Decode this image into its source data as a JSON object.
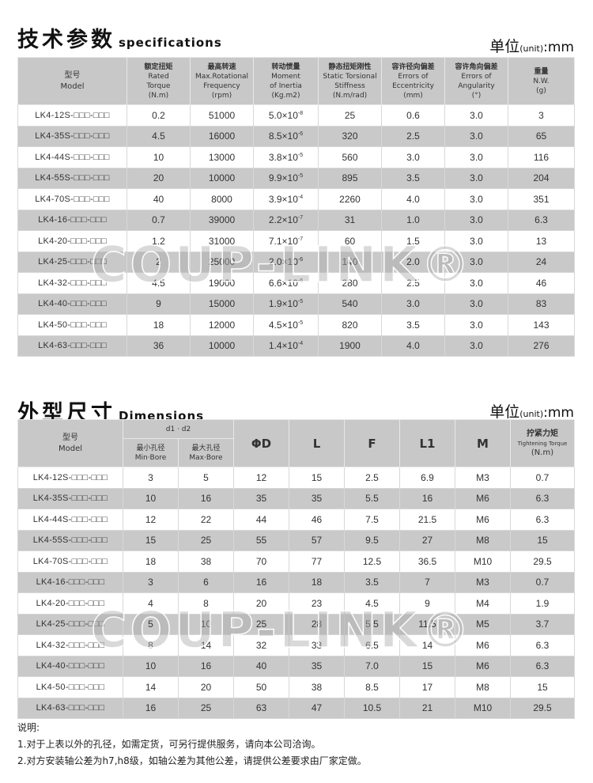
{
  "spec": {
    "title_cn": "技术参数",
    "title_en": "specifications",
    "unit_cn": "单位",
    "unit_sm": "(unit)",
    "unit_mm": ":mm",
    "headers": [
      [
        "型号",
        "Model"
      ],
      [
        "额定扭矩",
        "Rated",
        "Torque",
        "(N.m)"
      ],
      [
        "最高转速",
        "Max.Rotational",
        "Frequency",
        "(rpm)"
      ],
      [
        "转动惯量",
        "Moment",
        "of Inertia",
        "(Kg.m2)"
      ],
      [
        "静态扭矩刚性",
        "Static Torsional",
        "Stiffness",
        "(N.m/rad)"
      ],
      [
        "容许径向偏差",
        "Errors of",
        "Eccentricity",
        "(mm)"
      ],
      [
        "容许角向偏差",
        "Errors of",
        "Angularity",
        "(°)"
      ],
      [
        "重量",
        "N.W.",
        "(g)"
      ]
    ],
    "rows": [
      [
        "LK4-12S-□□□-□□□",
        "0.2",
        "51000",
        "5.0×10",
        "-8",
        "25",
        "0.6",
        "3.0",
        "3"
      ],
      [
        "LK4-35S-□□□-□□□",
        "4.5",
        "16000",
        "8.5×10",
        "-6",
        "320",
        "2.5",
        "3.0",
        "65"
      ],
      [
        "LK4-44S-□□□-□□□",
        "10",
        "13000",
        "3.8×10",
        "-5",
        "560",
        "3.0",
        "3.0",
        "116"
      ],
      [
        "LK4-55S-□□□-□□□",
        "20",
        "10000",
        "9.9×10",
        "-5",
        "895",
        "3.5",
        "3.0",
        "204"
      ],
      [
        "LK4-70S-□□□-□□□",
        "40",
        "8000",
        "3.9×10",
        "-4",
        "2260",
        "4.0",
        "3.0",
        "351"
      ],
      [
        "LK4-16-□□□-□□□",
        "0.7",
        "39000",
        "2.2×10",
        "-7",
        "31",
        "1.0",
        "3.0",
        "6.3"
      ],
      [
        "LK4-20-□□□-□□□",
        "1.2",
        "31000",
        "7.1×10",
        "-7",
        "60",
        "1.5",
        "3.0",
        "13"
      ],
      [
        "LK4-25-□□□-□□□",
        "2",
        "25000",
        "2.0×10",
        "-6",
        "140",
        "2.0",
        "3.0",
        "24"
      ],
      [
        "LK4-32-□□□-□□□",
        "4.5",
        "19000",
        "6.6×10",
        "-6",
        "280",
        "2.5",
        "3.0",
        "46"
      ],
      [
        "LK4-40-□□□-□□□",
        "9",
        "15000",
        "1.9×10",
        "-5",
        "540",
        "3.0",
        "3.0",
        "83"
      ],
      [
        "LK4-50-□□□-□□□",
        "18",
        "12000",
        "4.5×10",
        "-5",
        "820",
        "3.5",
        "3.0",
        "143"
      ],
      [
        "LK4-63-□□□-□□□",
        "36",
        "10000",
        "1.4×10",
        "-4",
        "1900",
        "4.0",
        "3.0",
        "276"
      ]
    ]
  },
  "dim": {
    "title_cn": "外型尺寸",
    "title_en": "Dimensions",
    "unit_cn": "单位",
    "unit_sm": "(unit)",
    "unit_mm": ":mm",
    "h_model": [
      "型号",
      "Model"
    ],
    "h_d": "d1 · d2",
    "h_min": [
      "最小孔径",
      "Min·Bore"
    ],
    "h_max": [
      "最大孔径",
      "Max·Bore"
    ],
    "h_cols": [
      "ΦD",
      "L",
      "F",
      "L1",
      "M"
    ],
    "h_torque": [
      "拧紧力矩",
      "Tightening Torque",
      "(N.m)"
    ],
    "rows": [
      [
        "LK4-12S-□□□-□□□",
        "3",
        "5",
        "12",
        "15",
        "2.5",
        "6.9",
        "M3",
        "0.7"
      ],
      [
        "LK4-35S-□□□-□□□",
        "10",
        "16",
        "35",
        "35",
        "5.5",
        "16",
        "M6",
        "6.3"
      ],
      [
        "LK4-44S-□□□-□□□",
        "12",
        "22",
        "44",
        "46",
        "7.5",
        "21.5",
        "M6",
        "6.3"
      ],
      [
        "LK4-55S-□□□-□□□",
        "15",
        "25",
        "55",
        "57",
        "9.5",
        "27",
        "M8",
        "15"
      ],
      [
        "LK4-70S-□□□-□□□",
        "18",
        "38",
        "70",
        "77",
        "12.5",
        "36.5",
        "M10",
        "29.5"
      ],
      [
        "LK4-16-□□□-□□□",
        "3",
        "6",
        "16",
        "18",
        "3.5",
        "7",
        "M3",
        "0.7"
      ],
      [
        "LK4-20-□□□-□□□",
        "4",
        "8",
        "20",
        "23",
        "4.5",
        "9",
        "M4",
        "1.9"
      ],
      [
        "LK4-25-□□□-□□□",
        "5",
        "10",
        "25",
        "28",
        "5.5",
        "11.5",
        "M5",
        "3.7"
      ],
      [
        "LK4-32-□□□-□□□",
        "8",
        "14",
        "32",
        "33",
        "6.5",
        "14",
        "M6",
        "6.3"
      ],
      [
        "LK4-40-□□□-□□□",
        "10",
        "16",
        "40",
        "35",
        "7.0",
        "15",
        "M6",
        "6.3"
      ],
      [
        "LK4-50-□□□-□□□",
        "14",
        "20",
        "50",
        "38",
        "8.5",
        "17",
        "M8",
        "15"
      ],
      [
        "LK4-63-□□□-□□□",
        "16",
        "25",
        "63",
        "47",
        "10.5",
        "21",
        "M10",
        "29.5"
      ]
    ]
  },
  "watermark": "COUP-LINK®",
  "notes": {
    "title": "说明:",
    "items": [
      "1.对于上表以外的孔径，如需定货，可另行提供服务，请向本公司洽询。",
      "2.对方安装轴公差为h7,h8级，如轴公差为其他公差，请提供公差要求由厂家定做。"
    ]
  }
}
